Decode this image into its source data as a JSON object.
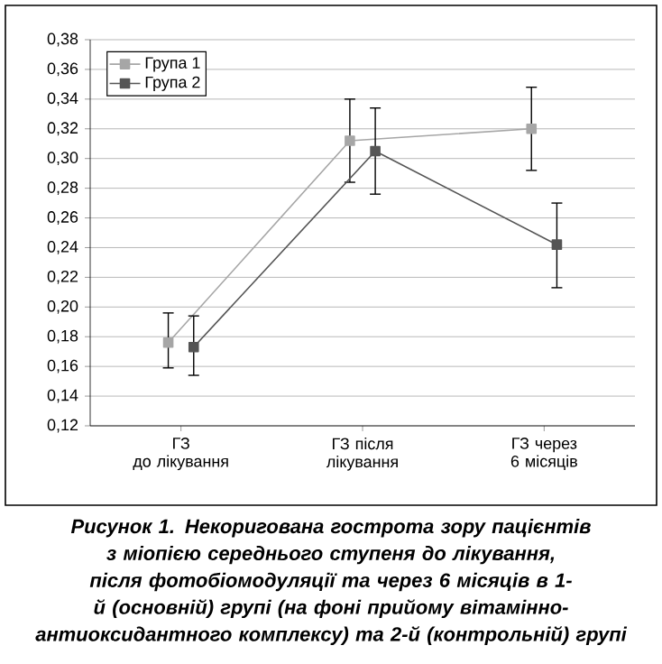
{
  "chart_data": {
    "type": "line",
    "categories": [
      "ГЗ\nдо лікування",
      "ГЗ після\nлікування",
      "ГЗ через\n6 місяців"
    ],
    "series": [
      {
        "name": "Група 1",
        "color": "#a6a6a6",
        "values": [
          0.176,
          0.312,
          0.32
        ],
        "errors": [
          [
            0.159,
            0.196
          ],
          [
            0.284,
            0.34
          ],
          [
            0.292,
            0.348
          ]
        ]
      },
      {
        "name": "Група 2",
        "color": "#555555",
        "values": [
          0.173,
          0.305,
          0.242
        ],
        "errors": [
          [
            0.154,
            0.194
          ],
          [
            0.276,
            0.334
          ],
          [
            0.213,
            0.27
          ]
        ]
      }
    ],
    "ylim": [
      0.12,
      0.38
    ],
    "yticks": [
      {
        "value": 0.12,
        "label": "0,12"
      },
      {
        "value": 0.14,
        "label": "0,14"
      },
      {
        "value": 0.16,
        "label": "0,16"
      },
      {
        "value": 0.18,
        "label": "0,18"
      },
      {
        "value": 0.2,
        "label": "0,20"
      },
      {
        "value": 0.22,
        "label": "0,22"
      },
      {
        "value": 0.24,
        "label": "0,24"
      },
      {
        "value": 0.26,
        "label": "0,26"
      },
      {
        "value": 0.28,
        "label": "0,28"
      },
      {
        "value": 0.3,
        "label": "0,30"
      },
      {
        "value": 0.32,
        "label": "0,32"
      },
      {
        "value": 0.34,
        "label": "0,34"
      },
      {
        "value": 0.36,
        "label": "0,36"
      },
      {
        "value": 0.38,
        "label": "0,38"
      }
    ],
    "grid": "y",
    "legend": "top left",
    "marker": "square",
    "line_style": "solid",
    "annotations": [
      "**Рисунок 1.** *Некоригована гострота зору пацієнтів з міопією середнього ступеня до лікування, після фотобіомодуляції та через 6 місяців в 1-й (основній) групі (на фоні прийому вітамінно-антиоксидантного комплексу) та 2-й (контрольній) групі*"
    ]
  }
}
